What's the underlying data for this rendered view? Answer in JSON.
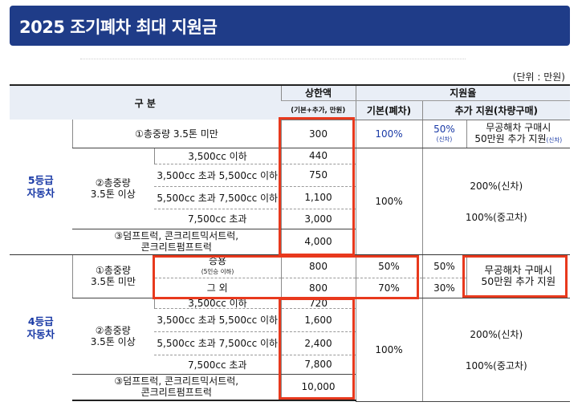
{
  "banner": {
    "title": "2025 조기폐차 최대 지원금"
  },
  "unit_note": "(단위 : 만원)",
  "headers": {
    "category": "구  분",
    "cap": "상한액",
    "cap_note": "(기본+추가, 만원)",
    "rate": "지원율",
    "basic": "기본(폐차)",
    "extra": "추가 지원(차량구매)"
  },
  "grade5": {
    "label": "5등급\n자동차",
    "under_label": "①총중량 3.5톤 미만",
    "under_cap": "300",
    "under_basic": "100%",
    "under_extra_rate": "50%",
    "under_extra_new": "(신차)",
    "under_extra_note1": "무공해차 구매시",
    "under_extra_note2": "50만원 추가 지원",
    "under_extra_note2_suffix": "(신차)",
    "over_label": "②총중량\n3.5톤 이상",
    "engine_rows": [
      {
        "range": "3,500cc 이하",
        "cap": "440"
      },
      {
        "range": "3,500cc 초과 5,500cc 이하",
        "cap": "750"
      },
      {
        "range": "5,500cc 초과 7,500cc 이하",
        "cap": "1,100"
      },
      {
        "range": "7,500cc 초과",
        "cap": "3,000"
      }
    ],
    "special_label": "③덤프트럭, 콘크리트믹서트럭,\n콘크리트펌프트럭",
    "special_cap": "4,000",
    "over_basic": "100%",
    "over_extra_new": "200%(신차)",
    "over_extra_used": "100%(중고차)"
  },
  "grade4": {
    "label": "4등급\n자동차",
    "under_label": "①총중량\n3.5톤 미만",
    "passenger_label": "승용",
    "passenger_note": "(5인승 이하)",
    "passenger_cap": "800",
    "passenger_basic": "50%",
    "passenger_extra": "50%",
    "other_label": "그 외",
    "other_cap": "800",
    "other_basic": "70%",
    "other_extra": "30%",
    "extra_note": "무공해차 구매시\n50만원 추가 지원",
    "over_label": "②총중량\n3.5톤 이상",
    "engine_rows": [
      {
        "range": "3,500cc 이하",
        "cap": "720"
      },
      {
        "range": "3,500cc 초과 5,500cc 이하",
        "cap": "1,600"
      },
      {
        "range": "5,500cc 초과 7,500cc 이하",
        "cap": "2,400"
      },
      {
        "range": "7,500cc 초과",
        "cap": "7,800"
      }
    ],
    "special_label": "③덤프트럭, 콘크리트믹서트럭,\n콘크리트펌프트럭",
    "special_cap": "10,000",
    "over_basic": "100%",
    "over_extra_new": "200%(신차)",
    "over_extra_used": "100%(중고차)"
  },
  "highlight_color": "#e8391d",
  "accent_color": "#1f3c88"
}
